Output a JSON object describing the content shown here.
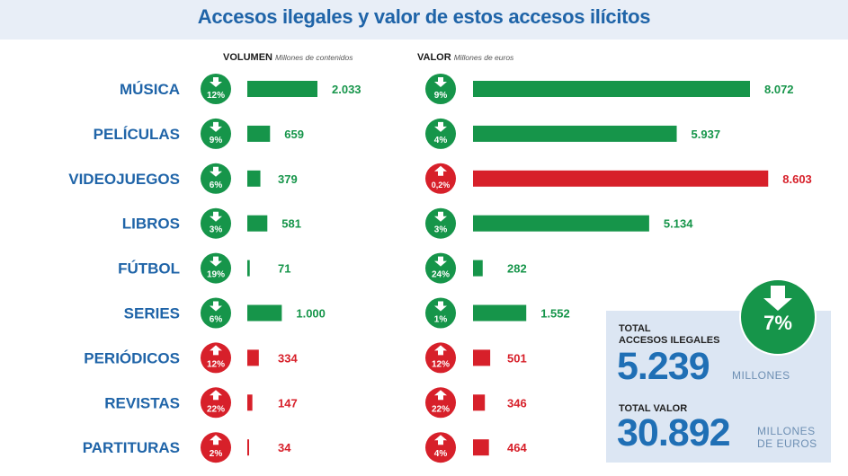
{
  "title": "Accesos ilegales y valor de estos accesos ilícitos",
  "colors": {
    "down": "#16954a",
    "up": "#d7202a",
    "label": "#1f64a8",
    "box": "#dce6f3"
  },
  "chart_data": {
    "type": "bar",
    "categories": [
      "MÚSICA",
      "PELÍCULAS",
      "VIDEOJUEGOS",
      "LIBROS",
      "FÚTBOL",
      "SERIES",
      "PERIÓDICOS",
      "REVISTAS",
      "PARTITURAS"
    ],
    "volumen": {
      "header": "VOLUMEN",
      "unit": "Millones de contenidos",
      "values": [
        2033,
        659,
        379,
        581,
        71,
        1000,
        334,
        147,
        34
      ],
      "labels": [
        "2.033",
        "659",
        "379",
        "581",
        "71",
        "1.000",
        "334",
        "147",
        "34"
      ],
      "change": [
        "12%",
        "9%",
        "6%",
        "3%",
        "19%",
        "6%",
        "12%",
        "22%",
        "2%"
      ],
      "direction": [
        "down",
        "down",
        "down",
        "down",
        "down",
        "down",
        "up",
        "up",
        "up"
      ]
    },
    "valor": {
      "header": "VALOR",
      "unit": "Millones de euros",
      "values": [
        8072,
        5937,
        8603,
        5134,
        282,
        1552,
        501,
        346,
        464
      ],
      "labels": [
        "8.072",
        "5.937",
        "8.603",
        "5.134",
        "282",
        "1.552",
        "501",
        "346",
        "464"
      ],
      "change": [
        "9%",
        "4%",
        "0,2%",
        "3%",
        "24%",
        "1%",
        "12%",
        "22%",
        "4%"
      ],
      "direction": [
        "down",
        "down",
        "up",
        "down",
        "down",
        "down",
        "up",
        "up",
        "up"
      ]
    }
  },
  "totals": {
    "change": "7%",
    "direction": "down",
    "accesos_label_1": "TOTAL",
    "accesos_label_2": "ACCESOS ILEGALES",
    "accesos_value": "5.239",
    "accesos_unit": "MILLONES",
    "valor_label": "TOTAL VALOR",
    "valor_value": "30.892",
    "valor_unit_1": "MILLONES",
    "valor_unit_2": "DE EUROS"
  }
}
